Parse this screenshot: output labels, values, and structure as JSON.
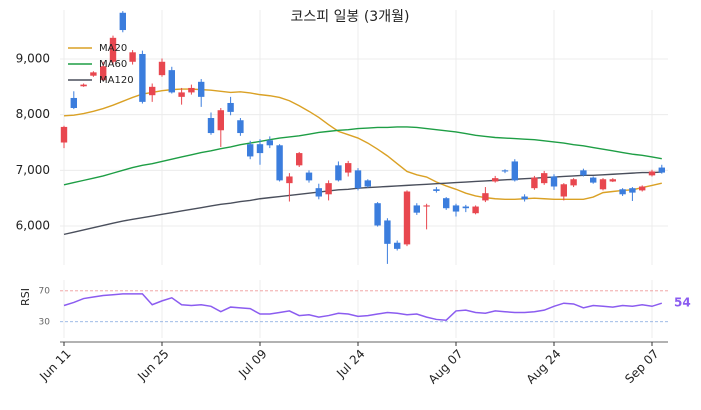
{
  "chart_data": [
    {
      "type": "candlestick",
      "title": "코스피 일봉 (3개월)",
      "categories": [
        "Jun 11",
        null,
        null,
        null,
        null,
        null,
        null,
        null,
        null,
        null,
        "Jun 25",
        null,
        null,
        null,
        null,
        null,
        null,
        null,
        null,
        null,
        "Jul 09",
        null,
        null,
        null,
        null,
        null,
        null,
        null,
        null,
        null,
        "Jul 24",
        null,
        null,
        null,
        null,
        null,
        null,
        null,
        null,
        null,
        "Aug 07",
        null,
        null,
        null,
        null,
        null,
        null,
        null,
        null,
        null,
        "Aug 24",
        null,
        null,
        null,
        null,
        null,
        null,
        null,
        null,
        null,
        "Sep 07",
        null
      ],
      "open": [
        7500,
        8300,
        8510,
        8700,
        8620,
        8950,
        9830,
        8950,
        9090,
        8350,
        8710,
        8800,
        8320,
        8400,
        8590,
        7940,
        7720,
        8210,
        7900,
        7470,
        7470,
        7540,
        7450,
        6770,
        7090,
        6960,
        6680,
        6570,
        7090,
        6960,
        7000,
        6820,
        6410,
        6100,
        5700,
        5670,
        6370,
        6350,
        6660,
        6500,
        6370,
        6350,
        6230,
        6460,
        6800,
        7000,
        7160,
        6530,
        6680,
        6770,
        6890,
        6530,
        6730,
        7000,
        6870,
        6660,
        6800,
        6660,
        6680,
        6640,
        6910,
        7050
      ],
      "high": [
        7800,
        8420,
        8560,
        8780,
        8950,
        9420,
        9860,
        9160,
        9150,
        8560,
        9010,
        8860,
        8480,
        8540,
        8640,
        8040,
        8120,
        8320,
        7940,
        7530,
        7560,
        7610,
        7470,
        6950,
        7330,
        7000,
        6760,
        6820,
        7160,
        7170,
        7040,
        6840,
        6430,
        6140,
        5740,
        6640,
        6410,
        6400,
        6700,
        6520,
        6400,
        6380,
        6370,
        6700,
        6900,
        7020,
        7200,
        6570,
        6900,
        6990,
        6930,
        6770,
        6860,
        7030,
        6890,
        6860,
        6860,
        6680,
        6700,
        6730,
        7010,
        7100
      ],
      "low": [
        7400,
        8100,
        8500,
        8680,
        8600,
        8900,
        9480,
        8900,
        8200,
        8230,
        8680,
        8380,
        8180,
        8360,
        8140,
        7640,
        7420,
        7990,
        7620,
        7200,
        7100,
        7400,
        6800,
        6440,
        7060,
        6780,
        6480,
        6460,
        6800,
        6890,
        6640,
        6690,
        5990,
        5320,
        5560,
        5640,
        6200,
        5940,
        6600,
        6290,
        6170,
        6250,
        6210,
        6430,
        6780,
        6950,
        6800,
        6440,
        6650,
        6740,
        6650,
        6460,
        6700,
        6890,
        6760,
        6640,
        6790,
        6540,
        6450,
        6620,
        6890,
        6940
      ],
      "close": [
        7780,
        8120,
        8540,
        8760,
        8870,
        9380,
        9520,
        9120,
        8230,
        8500,
        8950,
        8400,
        8400,
        8480,
        8320,
        7670,
        8080,
        8050,
        7670,
        7250,
        7310,
        7450,
        6820,
        6890,
        7310,
        6820,
        6530,
        6770,
        6820,
        7130,
        6680,
        6710,
        6010,
        5680,
        5590,
        6620,
        6240,
        6370,
        6630,
        6320,
        6260,
        6320,
        6350,
        6590,
        6860,
        6980,
        6820,
        6480,
        6870,
        6950,
        6710,
        6750,
        6840,
        6910,
        6780,
        6840,
        6840,
        6570,
        6600,
        6710,
        6980,
        6960
      ],
      "up_color": "#e8474f",
      "down_color": "#3b7ddd",
      "series": [
        {
          "name": "MA20",
          "color": "#daa125",
          "values": [
            7980,
            7990,
            8020,
            8060,
            8110,
            8170,
            8240,
            8310,
            8370,
            8400,
            8430,
            8450,
            8460,
            8460,
            8450,
            8440,
            8420,
            8400,
            8410,
            8390,
            8360,
            8340,
            8310,
            8250,
            8160,
            8060,
            7950,
            7820,
            7700,
            7640,
            7580,
            7490,
            7380,
            7260,
            7120,
            6980,
            6920,
            6880,
            6790,
            6720,
            6660,
            6590,
            6540,
            6510,
            6490,
            6480,
            6480,
            6490,
            6500,
            6490,
            6480,
            6480,
            6480,
            6480,
            6520,
            6600,
            6620,
            6640,
            6650,
            6690,
            6730,
            6770
          ]
        },
        {
          "name": "MA60",
          "color": "#1e9e45",
          "values": [
            6740,
            6780,
            6820,
            6860,
            6900,
            6950,
            7000,
            7050,
            7090,
            7120,
            7160,
            7200,
            7240,
            7280,
            7320,
            7350,
            7390,
            7420,
            7460,
            7490,
            7520,
            7550,
            7580,
            7600,
            7620,
            7650,
            7680,
            7700,
            7720,
            7730,
            7750,
            7760,
            7770,
            7770,
            7780,
            7780,
            7770,
            7750,
            7730,
            7710,
            7690,
            7660,
            7630,
            7610,
            7590,
            7580,
            7570,
            7560,
            7550,
            7530,
            7510,
            7490,
            7460,
            7440,
            7410,
            7380,
            7350,
            7320,
            7290,
            7270,
            7240,
            7210
          ]
        },
        {
          "name": "MA120",
          "color": "#4a4f5c",
          "values": [
            5850,
            5890,
            5930,
            5970,
            6010,
            6050,
            6090,
            6120,
            6150,
            6180,
            6210,
            6240,
            6270,
            6300,
            6330,
            6360,
            6390,
            6410,
            6440,
            6460,
            6490,
            6510,
            6530,
            6550,
            6570,
            6590,
            6610,
            6630,
            6650,
            6660,
            6680,
            6690,
            6700,
            6710,
            6720,
            6730,
            6740,
            6750,
            6760,
            6770,
            6780,
            6790,
            6800,
            6810,
            6820,
            6830,
            6840,
            6850,
            6860,
            6870,
            6880,
            6890,
            6900,
            6910,
            6910,
            6920,
            6930,
            6940,
            6950,
            6960,
            6960,
            6970
          ]
        }
      ],
      "ylim": [
        5300,
        9880
      ],
      "yticks": [
        {
          "value": 6000,
          "label": "6,000"
        },
        {
          "value": 7000,
          "label": "7,000"
        },
        {
          "value": 8000,
          "label": "8,000"
        },
        {
          "value": 9000,
          "label": "9,000"
        }
      ],
      "grid": true,
      "legend": "upper left"
    },
    {
      "type": "line",
      "y_label": "RSI",
      "color": "#8b5cf0",
      "values": [
        51,
        55,
        60,
        62,
        64,
        65,
        66,
        66,
        66,
        52,
        57,
        61,
        52,
        51,
        52,
        50,
        43,
        49,
        48,
        47,
        40,
        40,
        42,
        44,
        38,
        39,
        36,
        38,
        41,
        40,
        37,
        38,
        40,
        42,
        41,
        39,
        40,
        36,
        33,
        32,
        44,
        45,
        42,
        41,
        44,
        43,
        42,
        42,
        43,
        45,
        50,
        54,
        53,
        48,
        51,
        50,
        49,
        51,
        50,
        52,
        50,
        54
      ],
      "ylim": [
        9,
        84
      ],
      "yticks": [
        30,
        70
      ],
      "ytick_colors": [
        "#7fa3de",
        "#ef9a9a"
      ],
      "last_value_label": true
    }
  ]
}
